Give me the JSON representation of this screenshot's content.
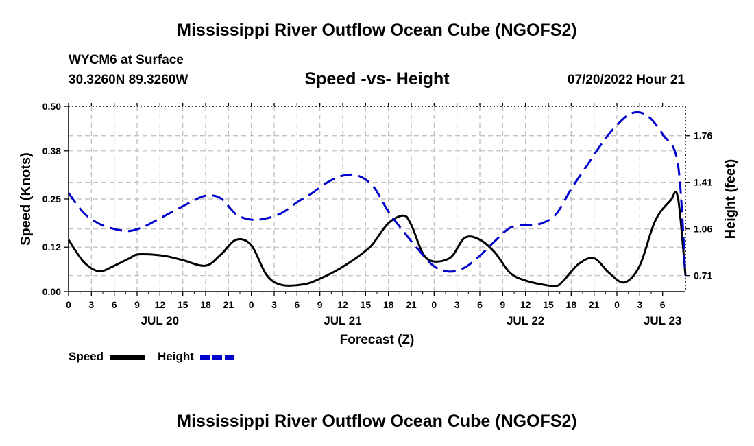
{
  "page": {
    "title": "Mississippi River Outflow Ocean Cube (NGOFS2)",
    "footer_title": "Mississippi River Outflow Ocean Cube (NGOFS2)",
    "station": "WYCM6 at Surface",
    "coords": "30.3260N  89.3260W",
    "subtitle": "Speed -vs- Height",
    "datetime": "07/20/2022 Hour 21"
  },
  "chart_data": {
    "type": "line",
    "title": "Speed -vs- Height",
    "xlabel": "Forecast (Z)",
    "ylabel_left": "Speed (Knots)",
    "ylabel_right": "Height (feet)",
    "x_hours_range": [
      0,
      81
    ],
    "x_tick_labels": [
      "0",
      "3",
      "6",
      "9",
      "12",
      "15",
      "18",
      "21",
      "0",
      "3",
      "6",
      "9",
      "12",
      "15",
      "18",
      "21",
      "0",
      "3",
      "6",
      "9",
      "12",
      "15",
      "18",
      "21",
      "0",
      "3",
      "6"
    ],
    "date_labels": [
      {
        "label": "JUL 20",
        "hour": 12
      },
      {
        "label": "JUL 21",
        "hour": 36
      },
      {
        "label": "JUL 22",
        "hour": 60
      },
      {
        "label": "JUL 23",
        "hour": 78
      }
    ],
    "y_left": {
      "min": 0,
      "max": 0.5,
      "ticks": [
        0.0,
        0.12,
        0.25,
        0.38,
        0.5
      ],
      "tick_labels": [
        "0.00",
        "0.12",
        "0.25",
        "0.38",
        "0.50"
      ]
    },
    "y_right": {
      "min": 0.59,
      "max": 1.98,
      "ticks": [
        0.71,
        1.06,
        1.41,
        1.76
      ],
      "tick_labels": [
        "0.71",
        "1.06",
        "1.41",
        "1.76"
      ]
    },
    "grid": true,
    "series": [
      {
        "name": "Speed",
        "axis": "left",
        "color": "#000000",
        "style": "solid",
        "hours": [
          0,
          2,
          4,
          6,
          8,
          9,
          11,
          13,
          15,
          18,
          20,
          22,
          24,
          26,
          28,
          31,
          33,
          35,
          37,
          39,
          40,
          42,
          44,
          45,
          47,
          50,
          52,
          54,
          56,
          58,
          60,
          62,
          64,
          65,
          67,
          69,
          71,
          73,
          75,
          77,
          79,
          80,
          81
        ],
        "values": [
          0.14,
          0.08,
          0.055,
          0.07,
          0.09,
          0.1,
          0.1,
          0.095,
          0.085,
          0.07,
          0.1,
          0.14,
          0.125,
          0.045,
          0.018,
          0.02,
          0.035,
          0.055,
          0.08,
          0.11,
          0.13,
          0.185,
          0.205,
          0.18,
          0.09,
          0.09,
          0.145,
          0.14,
          0.105,
          0.05,
          0.03,
          0.02,
          0.015,
          0.03,
          0.075,
          0.09,
          0.05,
          0.025,
          0.07,
          0.19,
          0.245,
          0.255,
          0.045
        ]
      },
      {
        "name": "Height",
        "axis": "right",
        "color": "#0000cc",
        "style": "dashed",
        "hours": [
          0,
          2,
          4,
          6,
          8,
          10,
          12,
          14,
          16,
          18,
          20,
          22,
          24,
          26,
          28,
          30,
          32,
          34,
          36,
          38,
          40,
          42,
          44,
          46,
          48,
          50,
          52,
          54,
          56,
          58,
          60,
          62,
          64,
          66,
          68,
          70,
          72,
          74,
          76,
          78,
          80,
          81
        ],
        "values": [
          1.33,
          1.18,
          1.1,
          1.06,
          1.045,
          1.08,
          1.14,
          1.2,
          1.26,
          1.31,
          1.29,
          1.17,
          1.13,
          1.14,
          1.18,
          1.26,
          1.33,
          1.41,
          1.46,
          1.46,
          1.38,
          1.19,
          1.04,
          0.9,
          0.78,
          0.74,
          0.77,
          0.86,
          0.97,
          1.07,
          1.09,
          1.1,
          1.17,
          1.36,
          1.53,
          1.7,
          1.84,
          1.93,
          1.91,
          1.77,
          1.55,
          0.71
        ]
      }
    ],
    "legend": {
      "placement": "bottom-left",
      "entries": [
        "Speed",
        "Height"
      ]
    }
  }
}
